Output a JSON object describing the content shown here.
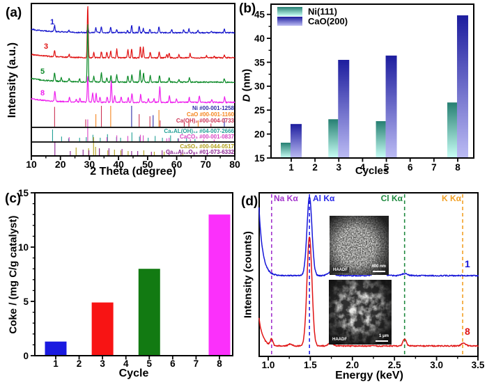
{
  "panel_labels": {
    "a": "(a)",
    "b": "(b)",
    "c": "(c)",
    "d": "(d)"
  },
  "chart_data": [
    {
      "panel": "a",
      "type": "line",
      "variant": "xrd",
      "xlabel": "2 Theta (degree)",
      "ylabel": "Intensity (a.u.)",
      "xlim": [
        10,
        80
      ],
      "xticks": [
        10,
        20,
        30,
        40,
        50,
        60,
        70,
        80
      ],
      "grid": false,
      "curves": [
        {
          "label": "1",
          "color": "#1515cc",
          "peaks": [
            [
              18,
              9
            ],
            [
              22.9,
              3
            ],
            [
              29.4,
              10
            ],
            [
              32.2,
              7
            ],
            [
              34.1,
              9
            ],
            [
              37.3,
              8
            ],
            [
              39.4,
              5
            ],
            [
              43.1,
              3
            ],
            [
              44.5,
              11
            ],
            [
              47.1,
              9
            ],
            [
              48.5,
              6
            ],
            [
              50.8,
              5
            ],
            [
              53.9,
              9
            ],
            [
              58.3,
              4
            ],
            [
              62.4,
              4
            ],
            [
              64.2,
              6
            ],
            [
              67.3,
              4
            ],
            [
              72,
              2
            ],
            [
              76.4,
              5
            ]
          ]
        },
        {
          "label": "3",
          "color": "#e01212",
          "peaks": [
            [
              18,
              9
            ],
            [
              23,
              4
            ],
            [
              29.4,
              76
            ],
            [
              31.5,
              7
            ],
            [
              34.1,
              9
            ],
            [
              36,
              8
            ],
            [
              37.3,
              10
            ],
            [
              39.4,
              12
            ],
            [
              43.2,
              12
            ],
            [
              44.5,
              13
            ],
            [
              47.5,
              16
            ],
            [
              48.5,
              15
            ],
            [
              50.9,
              8
            ],
            [
              54,
              9
            ],
            [
              56.6,
              5
            ],
            [
              57.4,
              7
            ],
            [
              60.8,
              5
            ],
            [
              64.6,
              6
            ],
            [
              70.3,
              3
            ],
            [
              72.9,
              3
            ],
            [
              76.4,
              4
            ]
          ]
        },
        {
          "label": "5",
          "color": "#0c8a28",
          "peaks": [
            [
              18,
              12
            ],
            [
              20.3,
              5
            ],
            [
              23,
              4
            ],
            [
              26.6,
              4
            ],
            [
              29.4,
              84
            ],
            [
              31.5,
              8
            ],
            [
              34.1,
              13
            ],
            [
              36,
              6
            ],
            [
              37.4,
              10
            ],
            [
              39.4,
              10
            ],
            [
              43.2,
              9
            ],
            [
              44.6,
              11
            ],
            [
              47.4,
              17
            ],
            [
              48.6,
              13
            ],
            [
              50.9,
              9
            ],
            [
              54.1,
              9
            ],
            [
              57.4,
              6
            ],
            [
              60.8,
              4
            ],
            [
              64.4,
              6
            ],
            [
              76.4,
              5
            ]
          ]
        },
        {
          "label": "8",
          "color": "#ee22ee",
          "peaks": [
            [
              18.1,
              15
            ],
            [
              23.1,
              6
            ],
            [
              25.5,
              4
            ],
            [
              26.7,
              5
            ],
            [
              29.4,
              38
            ],
            [
              31.1,
              14
            ],
            [
              32.3,
              13
            ],
            [
              33.6,
              7
            ],
            [
              36.1,
              8
            ],
            [
              37.5,
              32
            ],
            [
              38.7,
              9
            ],
            [
              40.9,
              8
            ],
            [
              43.3,
              7
            ],
            [
              44.6,
              13
            ],
            [
              47.6,
              11
            ],
            [
              50.3,
              5
            ],
            [
              52.2,
              6
            ],
            [
              54.2,
              23
            ],
            [
              57.5,
              9
            ],
            [
              59.9,
              5
            ],
            [
              64.3,
              7
            ],
            [
              67.8,
              9
            ],
            [
              72.1,
              4
            ],
            [
              76.5,
              8
            ]
          ]
        }
      ],
      "references": [
        {
          "label": "Ni #00-001-1258",
          "color": "#2c2ca8",
          "group": 1,
          "sticks": [
            [
              44.5,
              1
            ],
            [
              51.9,
              0.55
            ],
            [
              76.4,
              0.4
            ]
          ]
        },
        {
          "label": "CaO #00-001-1160",
          "color": "#f5861f",
          "group": 1,
          "sticks": [
            [
              32.2,
              0.6
            ],
            [
              37.3,
              1
            ],
            [
              53.9,
              0.8
            ],
            [
              64.2,
              0.35
            ],
            [
              67.4,
              0.3
            ]
          ]
        },
        {
          "label": "Ca(OH)₂ #00-004-0733",
          "color": "#cc3355",
          "group": 1,
          "sticks": [
            [
              18,
              0.95
            ],
            [
              28.7,
              0.35
            ],
            [
              34.1,
              1
            ],
            [
              47.1,
              0.6
            ],
            [
              50.8,
              0.5
            ],
            [
              54.3,
              0.3
            ],
            [
              62.6,
              0.2
            ],
            [
              64.2,
              0.2
            ],
            [
              71.8,
              0.15
            ]
          ]
        },
        {
          "label": "Ca₂AL(OH)₁₂ #04-007-2666",
          "color": "#22a096",
          "group": 2,
          "sticks": [
            [
              17.3,
              1
            ],
            [
              20.4,
              0.4
            ],
            [
              22.8,
              0.25
            ],
            [
              26.6,
              0.3
            ],
            [
              28.9,
              0.35
            ],
            [
              31.2,
              0.55
            ],
            [
              33.7,
              0.3
            ],
            [
              36.2,
              0.6
            ],
            [
              39.3,
              0.35
            ],
            [
              40.7,
              0.3
            ],
            [
              44.6,
              0.75
            ],
            [
              47.2,
              0.4
            ],
            [
              50.2,
              0.3
            ],
            [
              52.6,
              0.45
            ],
            [
              55.1,
              0.3
            ],
            [
              57.9,
              0.5
            ],
            [
              60.4,
              0.25
            ],
            [
              63.4,
              0.3
            ],
            [
              66.3,
              0.2
            ]
          ]
        },
        {
          "label": "CaCO₃ #00-001-0837",
          "color": "#d944c4",
          "group": 2,
          "sticks": [
            [
              23,
              0.35
            ],
            [
              29.4,
              1.85
            ],
            [
              31.4,
              0.25
            ],
            [
              36,
              0.35
            ],
            [
              39.4,
              0.5
            ],
            [
              43.2,
              0.45
            ],
            [
              47.5,
              0.55
            ],
            [
              48.5,
              0.5
            ],
            [
              56.6,
              0.25
            ],
            [
              57.4,
              0.3
            ],
            [
              60.7,
              0.25
            ],
            [
              64.7,
              0.2
            ],
            [
              69.2,
              0.15
            ],
            [
              72.9,
              0.15
            ]
          ]
        },
        {
          "label": "CaSO₄ #00-044-0517",
          "color": "#b3a018",
          "group": 3,
          "sticks": [
            [
              25.4,
              0.55
            ],
            [
              29.7,
              0.5
            ],
            [
              31.4,
              1.3
            ],
            [
              32.1,
              0.6
            ],
            [
              33.4,
              0.45
            ],
            [
              36.3,
              0.35
            ],
            [
              38.6,
              0.4
            ],
            [
              40.8,
              0.35
            ],
            [
              43.3,
              0.3
            ],
            [
              48.7,
              0.35
            ],
            [
              52.3,
              0.25
            ],
            [
              55.7,
              0.25
            ],
            [
              62.1,
              0.15
            ]
          ]
        },
        {
          "label": "Ca₁₂Al₁₄O₃₃ #01-073-6332",
          "color": "#8a2090",
          "group": 3,
          "sticks": [
            [
              18.1,
              1
            ],
            [
              23.4,
              0.3
            ],
            [
              27.8,
              0.4
            ],
            [
              29.8,
              0.35
            ],
            [
              33.4,
              0.5
            ],
            [
              36.7,
              0.5
            ],
            [
              41.2,
              0.45
            ],
            [
              44.5,
              0.3
            ],
            [
              46.6,
              0.3
            ],
            [
              51.3,
              0.25
            ],
            [
              55,
              0.35
            ],
            [
              57.4,
              0.3
            ],
            [
              61.5,
              0.2
            ],
            [
              66,
              0.2
            ],
            [
              70.5,
              0.15
            ]
          ]
        }
      ]
    },
    {
      "panel": "b",
      "type": "bar",
      "xlabel": "Cycles",
      "ylabel": "D (nm)",
      "ylabel_italic": "D",
      "ylabel_rest": " (nm)",
      "categories": [
        1,
        2,
        3,
        4,
        5,
        6,
        7,
        8
      ],
      "bar_cycles": [
        1,
        3,
        5,
        8
      ],
      "series": [
        {
          "name": "Ni(111)",
          "values": [
            18.2,
            23.1,
            22.7,
            26.6
          ],
          "color_top": "#267f72",
          "color_bottom": "#c9fff6"
        },
        {
          "name": "CaO(200)",
          "values": [
            22.1,
            35.5,
            36.4,
            44.8
          ],
          "color_top": "#1d1d9e",
          "color_bottom": "#bcbcf4"
        }
      ],
      "ylim": [
        15,
        45
      ],
      "yticks": [
        15,
        20,
        25,
        30,
        35,
        40,
        45
      ],
      "legend_position": "top-left",
      "grid": false
    },
    {
      "panel": "c",
      "type": "bar",
      "xlabel": "Cycle",
      "ylabel": "Coke / (mg C/g catalyst)",
      "categories": [
        1,
        2,
        3,
        4,
        5,
        6,
        7,
        8
      ],
      "bar_cycles": [
        1,
        3,
        5,
        8
      ],
      "values": [
        1.3,
        4.9,
        8.0,
        13.0
      ],
      "colors": [
        "#1a1ae0",
        "#f81414",
        "#127a12",
        "#fb30fb"
      ],
      "ylim": [
        0,
        15
      ],
      "yticks": [
        0,
        5,
        10,
        15
      ],
      "grid": false
    },
    {
      "panel": "d",
      "type": "line",
      "variant": "eds-spectra",
      "xlabel": "Energy  (keV)",
      "ylabel": "Intensity (counts)",
      "xlim": [
        0.89,
        3.5
      ],
      "xticks": [
        "1.0",
        "1.5",
        "2.0",
        "2.5",
        "3.0",
        "3.5"
      ],
      "element_lines": [
        {
          "label": "Na Kα",
          "energy": 1.04,
          "color": "#a233cc"
        },
        {
          "label": "Al Kα",
          "energy": 1.49,
          "color": "#2525e8"
        },
        {
          "label": "Cl Kα",
          "energy": 2.62,
          "color": "#1f8a3f"
        },
        {
          "label": "K Kα",
          "energy": 3.31,
          "color": "#f2a024"
        }
      ],
      "spectra": [
        {
          "label": "1",
          "color": "#1616d8",
          "left_rise": 98,
          "peaks": [
            [
              1.49,
              113,
              0.042
            ],
            [
              1.74,
              5,
              0.05
            ],
            [
              2.32,
              6,
              0.07
            ],
            [
              2.62,
              3,
              0.05
            ]
          ]
        },
        {
          "label": "8",
          "color": "#e01414",
          "left_rise": 40,
          "peaks": [
            [
              1.04,
              9,
              0.02
            ],
            [
              1.26,
              3,
              0.03
            ],
            [
              1.49,
              157,
              0.042
            ],
            [
              1.74,
              4,
              0.04
            ],
            [
              2.62,
              10,
              0.028
            ],
            [
              3.32,
              4,
              0.035
            ]
          ]
        }
      ],
      "insets": [
        {
          "label": "HAADF",
          "scale_text": "400 nm"
        },
        {
          "label": "HAADF",
          "scale_text": "1 μm"
        }
      ]
    }
  ]
}
